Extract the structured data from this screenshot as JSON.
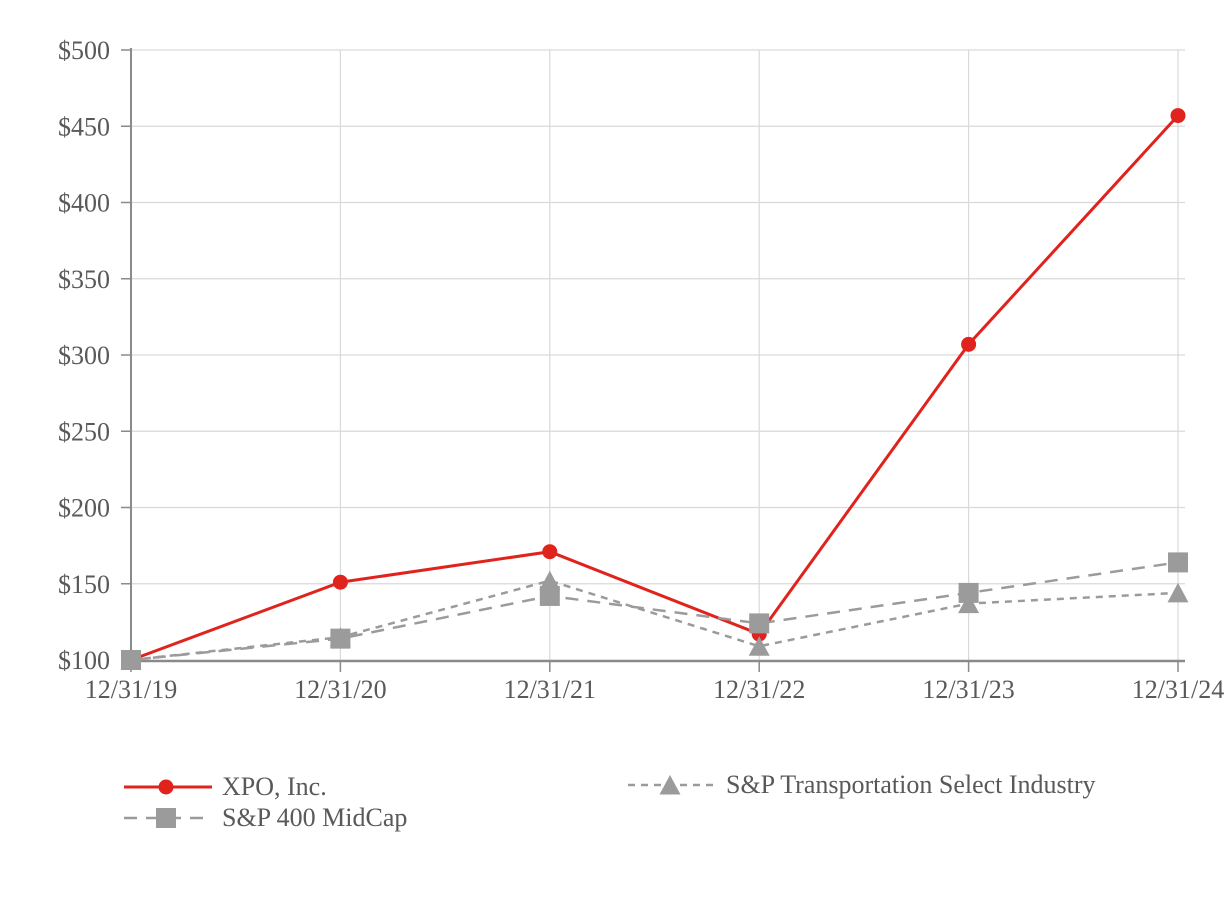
{
  "chart_data": {
    "type": "line",
    "title": "",
    "xlabel": "",
    "ylabel": "",
    "x_labels": [
      "12/31/19",
      "12/31/20",
      "12/31/21",
      "12/31/22",
      "12/31/23",
      "12/31/24"
    ],
    "y_tick_labels": [
      "$100",
      "$150",
      "$200",
      "$250",
      "$300",
      "$350",
      "$400",
      "$450",
      "$500"
    ],
    "ylim": [
      100,
      500
    ],
    "y_step": 50,
    "grid": true,
    "legend_position": "bottom",
    "series": [
      {
        "name": "XPO, Inc.",
        "marker": "circle",
        "line_style": "solid",
        "color": "#e0231c",
        "values": [
          100,
          151,
          171,
          117,
          307,
          457
        ]
      },
      {
        "name": "S&P Transportation Select Industry",
        "marker": "triangle",
        "line_style": "short-dash",
        "color": "#9b9b9b",
        "values": [
          100,
          115,
          152,
          109,
          137,
          144
        ]
      },
      {
        "name": "S&P 400 MidCap",
        "marker": "square",
        "line_style": "long-dash",
        "color": "#9b9b9b",
        "values": [
          100,
          114,
          142,
          124,
          144,
          164
        ]
      }
    ]
  },
  "legend": {
    "items": [
      {
        "label": "XPO, Inc.",
        "series": "xpo"
      },
      {
        "label": "S&P 400 MidCap",
        "series": "midcap"
      },
      {
        "label": "S&P Transportation Select Industry",
        "series": "transportation"
      }
    ]
  },
  "colors": {
    "xpo_red": "#e0231c",
    "series_gray": "#9b9b9b",
    "axis_line": "#8a8a8a",
    "gridline": "#d9d9d9",
    "label_text": "#595959",
    "background": "#ffffff"
  }
}
